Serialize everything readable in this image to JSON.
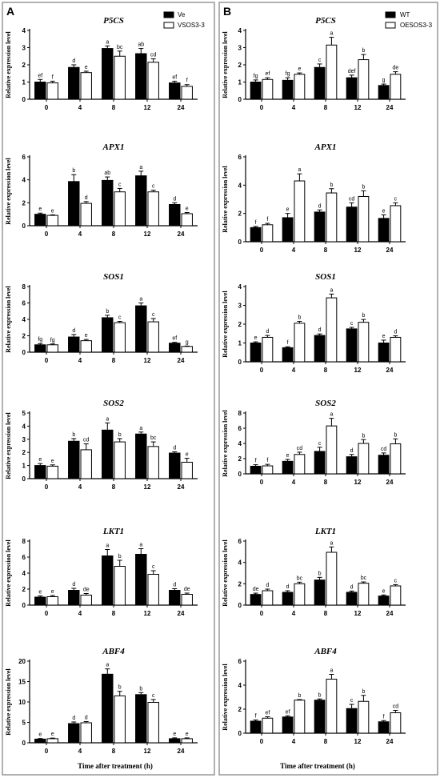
{
  "panels": [
    {
      "label": "A",
      "legend": [
        "Ve",
        "VSOS3-3"
      ]
    },
    {
      "label": "B",
      "legend": [
        "WT",
        "OESOS3-3"
      ]
    }
  ],
  "ylabel": "Relative expression level",
  "xlabel": "Time after treatment (h)",
  "colors": {
    "series1": "#000000",
    "series2": "#ffffff",
    "frame": "#7f7f7f"
  },
  "chart_data": [
    {
      "type": "bar",
      "panel": "A",
      "title": "P5CS",
      "categories": [
        "0",
        "4",
        "8",
        "12",
        "24"
      ],
      "ylim": [
        0,
        4
      ],
      "yticks": [
        0,
        1,
        2,
        3,
        4
      ],
      "series": [
        {
          "name": "Ve",
          "values": [
            1.0,
            1.85,
            2.95,
            2.65,
            0.95
          ],
          "errors": [
            0.15,
            0.15,
            0.15,
            0.3,
            0.1
          ],
          "letters": [
            "ef",
            "d",
            "a",
            "ab",
            "ef"
          ]
        },
        {
          "name": "VSOS3-3",
          "values": [
            0.95,
            1.55,
            2.5,
            2.15,
            0.75
          ],
          "errors": [
            0.1,
            0.08,
            0.3,
            0.2,
            0.1
          ],
          "letters": [
            "f",
            "e",
            "bc",
            "cd",
            "f"
          ]
        }
      ]
    },
    {
      "type": "bar",
      "panel": "A",
      "title": "APX1",
      "categories": [
        "0",
        "4",
        "8",
        "12",
        "24"
      ],
      "ylim": [
        0,
        6
      ],
      "yticks": [
        0,
        2,
        4,
        6
      ],
      "series": [
        {
          "name": "Ve",
          "values": [
            1.0,
            3.85,
            3.95,
            4.35,
            1.85
          ],
          "errors": [
            0.1,
            0.6,
            0.3,
            0.4,
            0.15
          ],
          "letters": [
            "e",
            "b",
            "ab",
            "a",
            "d"
          ]
        },
        {
          "name": "VSOS3-3",
          "values": [
            0.9,
            1.95,
            2.95,
            2.95,
            1.05
          ],
          "errors": [
            0.05,
            0.15,
            0.3,
            0.15,
            0.1
          ],
          "letters": [
            "e",
            "d",
            "c",
            "c",
            "e"
          ]
        }
      ]
    },
    {
      "type": "bar",
      "panel": "A",
      "title": "SOS1",
      "categories": [
        "0",
        "4",
        "8",
        "12",
        "24"
      ],
      "ylim": [
        0,
        8
      ],
      "yticks": [
        0,
        2,
        4,
        6,
        8
      ],
      "series": [
        {
          "name": "Ve",
          "values": [
            0.9,
            1.85,
            4.2,
            5.65,
            1.1
          ],
          "errors": [
            0.15,
            0.3,
            0.3,
            0.35,
            0.1
          ],
          "letters": [
            "fg",
            "d",
            "b",
            "a",
            "ef"
          ]
        },
        {
          "name": "VSOS3-3",
          "values": [
            0.9,
            1.4,
            3.6,
            3.7,
            0.7
          ],
          "errors": [
            0.1,
            0.15,
            0.15,
            0.4,
            0.05
          ],
          "letters": [
            "fg",
            "e",
            "c",
            "c",
            "g"
          ]
        }
      ]
    },
    {
      "type": "bar",
      "panel": "A",
      "title": "SOS2",
      "categories": [
        "0",
        "4",
        "8",
        "12",
        "24"
      ],
      "ylim": [
        0,
        5
      ],
      "yticks": [
        0,
        1,
        2,
        3,
        4,
        5
      ],
      "series": [
        {
          "name": "Ve",
          "values": [
            1.0,
            2.85,
            3.7,
            3.4,
            1.95
          ],
          "errors": [
            0.15,
            0.2,
            0.55,
            0.15,
            0.1
          ],
          "letters": [
            "e",
            "b",
            "a",
            "a",
            "d"
          ]
        },
        {
          "name": "VSOS3-3",
          "values": [
            0.95,
            2.2,
            2.8,
            2.45,
            1.25
          ],
          "errors": [
            0.1,
            0.45,
            0.25,
            0.35,
            0.3
          ],
          "letters": [
            "e",
            "cd",
            "b",
            "bc",
            "e"
          ]
        }
      ]
    },
    {
      "type": "bar",
      "panel": "A",
      "title": "LKT1",
      "categories": [
        "0",
        "4",
        "8",
        "12",
        "24"
      ],
      "ylim": [
        0,
        8
      ],
      "yticks": [
        0,
        2,
        4,
        6,
        8
      ],
      "series": [
        {
          "name": "Ve",
          "values": [
            1.0,
            1.85,
            6.15,
            6.35,
            1.85
          ],
          "errors": [
            0.15,
            0.25,
            0.8,
            0.7,
            0.2
          ],
          "letters": [
            "e",
            "d",
            "a",
            "a",
            "d"
          ]
        },
        {
          "name": "VSOS3-3",
          "values": [
            1.05,
            1.25,
            4.85,
            3.85,
            1.35
          ],
          "errors": [
            0.15,
            0.2,
            0.75,
            0.45,
            0.15
          ],
          "letters": [
            "e",
            "de",
            "b",
            "c",
            "de"
          ]
        }
      ]
    },
    {
      "type": "bar",
      "panel": "A",
      "title": "ABF4",
      "categories": [
        "0",
        "4",
        "8",
        "12",
        "24"
      ],
      "ylim": [
        0,
        20
      ],
      "yticks": [
        0,
        5,
        10,
        15,
        20
      ],
      "series": [
        {
          "name": "Ve",
          "values": [
            0.9,
            4.7,
            16.8,
            11.8,
            1.0
          ],
          "errors": [
            0.15,
            0.4,
            1.3,
            0.5,
            0.2
          ],
          "letters": [
            "e",
            "d",
            "a",
            "b",
            "e"
          ]
        },
        {
          "name": "VSOS3-3",
          "values": [
            1.0,
            4.9,
            11.5,
            9.9,
            1.0
          ],
          "errors": [
            0.15,
            0.3,
            1.1,
            0.7,
            0.2
          ],
          "letters": [
            "e",
            "d",
            "b",
            "c",
            "e"
          ]
        }
      ]
    },
    {
      "type": "bar",
      "panel": "B",
      "title": "P5CS",
      "categories": [
        "0",
        "4",
        "8",
        "12",
        "24"
      ],
      "ylim": [
        0,
        4
      ],
      "yticks": [
        0,
        1,
        2,
        3,
        4
      ],
      "series": [
        {
          "name": "WT",
          "values": [
            1.0,
            1.1,
            1.85,
            1.25,
            0.8
          ],
          "errors": [
            0.12,
            0.15,
            0.2,
            0.15,
            0.08
          ],
          "letters": [
            "fg",
            "fg",
            "c",
            "def",
            "g"
          ]
        },
        {
          "name": "OESOS3-3",
          "values": [
            1.15,
            1.45,
            3.15,
            2.3,
            1.45
          ],
          "errors": [
            0.1,
            0.08,
            0.45,
            0.3,
            0.15
          ],
          "letters": [
            "ef",
            "e",
            "a",
            "b",
            "de"
          ]
        }
      ]
    },
    {
      "type": "bar",
      "panel": "B",
      "title": "APX1",
      "categories": [
        "0",
        "4",
        "8",
        "12",
        "24"
      ],
      "ylim": [
        0,
        6
      ],
      "yticks": [
        0,
        2,
        4,
        6
      ],
      "series": [
        {
          "name": "WT",
          "values": [
            1.0,
            1.7,
            2.1,
            2.45,
            1.65
          ],
          "errors": [
            0.08,
            0.3,
            0.15,
            0.3,
            0.25
          ],
          "letters": [
            "f",
            "e",
            "d",
            "cd",
            "e"
          ]
        },
        {
          "name": "OESOS3-3",
          "values": [
            1.2,
            4.3,
            3.45,
            3.2,
            2.55
          ],
          "errors": [
            0.1,
            0.5,
            0.3,
            0.4,
            0.2
          ],
          "letters": [
            "f",
            "a",
            "b",
            "b",
            "c"
          ]
        }
      ]
    },
    {
      "type": "bar",
      "panel": "B",
      "title": "SOS1",
      "categories": [
        "0",
        "4",
        "8",
        "12",
        "24"
      ],
      "ylim": [
        0,
        4
      ],
      "yticks": [
        0,
        1,
        2,
        3,
        4
      ],
      "series": [
        {
          "name": "WT",
          "values": [
            1.0,
            0.75,
            1.4,
            1.75,
            1.0
          ],
          "errors": [
            0.06,
            0.05,
            0.08,
            0.08,
            0.15
          ],
          "letters": [
            "e",
            "f",
            "d",
            "c",
            "e"
          ]
        },
        {
          "name": "OESOS3-3",
          "values": [
            1.3,
            2.05,
            3.4,
            2.1,
            1.3
          ],
          "errors": [
            0.1,
            0.1,
            0.2,
            0.15,
            0.08
          ],
          "letters": [
            "d",
            "b",
            "a",
            "b",
            "d"
          ]
        }
      ]
    },
    {
      "type": "bar",
      "panel": "B",
      "title": "SOS2",
      "categories": [
        "0",
        "4",
        "8",
        "12",
        "24"
      ],
      "ylim": [
        0,
        8
      ],
      "yticks": [
        0,
        2,
        4,
        6,
        8
      ],
      "series": [
        {
          "name": "WT",
          "values": [
            1.0,
            1.65,
            2.95,
            2.25,
            2.45
          ],
          "errors": [
            0.2,
            0.25,
            0.55,
            0.3,
            0.3
          ],
          "letters": [
            "f",
            "e",
            "c",
            "d",
            "cd"
          ]
        },
        {
          "name": "OESOS3-3",
          "values": [
            1.05,
            2.55,
            6.3,
            4.0,
            3.95
          ],
          "errors": [
            0.2,
            0.3,
            1.0,
            0.5,
            0.65
          ],
          "letters": [
            "f",
            "cd",
            "a",
            "b",
            "b"
          ]
        }
      ]
    },
    {
      "type": "bar",
      "panel": "B",
      "title": "LKT1",
      "categories": [
        "0",
        "4",
        "8",
        "12",
        "24"
      ],
      "ylim": [
        0,
        6
      ],
      "yticks": [
        0,
        2,
        4,
        6
      ],
      "series": [
        {
          "name": "WT",
          "values": [
            1.0,
            1.2,
            2.35,
            1.2,
            0.85
          ],
          "errors": [
            0.12,
            0.15,
            0.25,
            0.12,
            0.1
          ],
          "letters": [
            "de",
            "d",
            "b",
            "d",
            "e"
          ]
        },
        {
          "name": "OESOS3-3",
          "values": [
            1.35,
            2.0,
            4.95,
            2.05,
            1.8
          ],
          "errors": [
            0.15,
            0.15,
            0.5,
            0.12,
            0.12
          ],
          "letters": [
            "d",
            "bc",
            "a",
            "bc",
            "c"
          ]
        }
      ]
    },
    {
      "type": "bar",
      "panel": "B",
      "title": "ABF4",
      "categories": [
        "0",
        "4",
        "8",
        "12",
        "24"
      ],
      "ylim": [
        0,
        6
      ],
      "yticks": [
        0,
        2,
        4,
        6
      ],
      "series": [
        {
          "name": "WT",
          "values": [
            1.0,
            1.35,
            2.75,
            2.05,
            0.95
          ],
          "errors": [
            0.1,
            0.1,
            0.1,
            0.35,
            0.1
          ],
          "letters": [
            "f",
            "ef",
            "b",
            "c",
            "f"
          ]
        },
        {
          "name": "OESOS3-3",
          "values": [
            1.25,
            2.75,
            4.5,
            2.65,
            1.7
          ],
          "errors": [
            0.12,
            0.05,
            0.4,
            0.5,
            0.2
          ],
          "letters": [
            "ef",
            "b",
            "a",
            "b",
            "cd"
          ]
        }
      ]
    }
  ]
}
